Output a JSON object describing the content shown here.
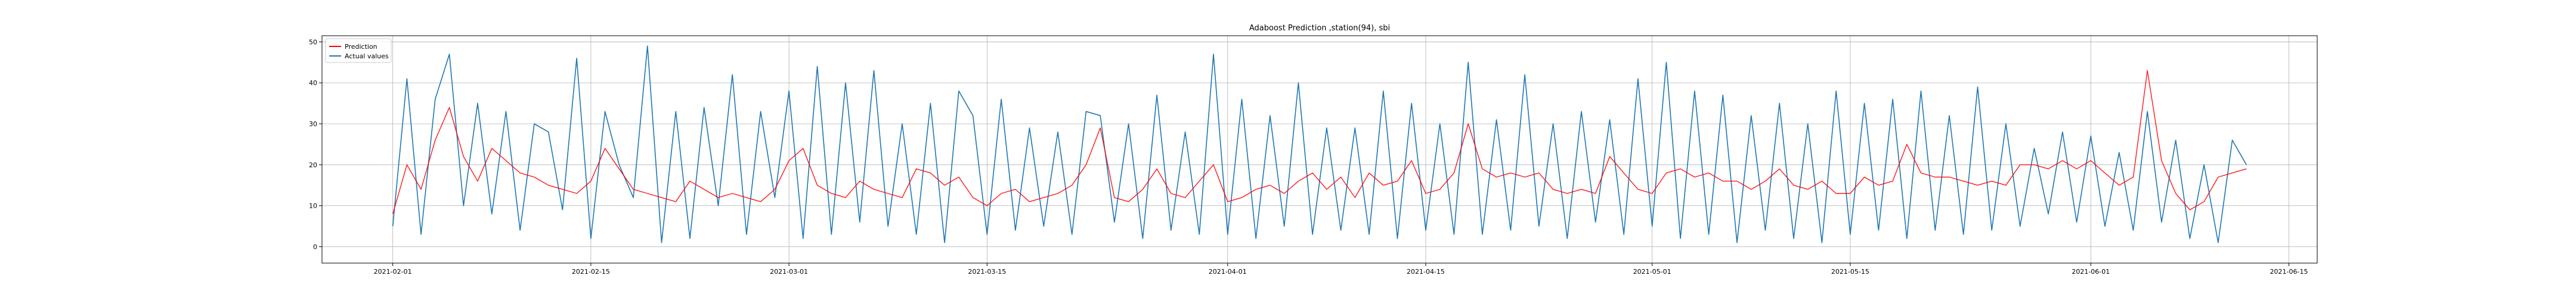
{
  "chart_data": {
    "type": "line",
    "title": "Adaboost Prediction ,station(94), sbi",
    "xlabel": "",
    "ylabel": "",
    "x_range": [
      "2021-01-27",
      "2021-06-17"
    ],
    "ylim": [
      -4,
      51.5
    ],
    "grid": true,
    "legend_position": "top-left",
    "x_ticks": [
      {
        "date": "2021-02-01",
        "label": "2021-02-01"
      },
      {
        "date": "2021-02-15",
        "label": "2021-02-15"
      },
      {
        "date": "2021-03-01",
        "label": "2021-03-01"
      },
      {
        "date": "2021-03-15",
        "label": "2021-03-15"
      },
      {
        "date": "2021-04-01",
        "label": "2021-04-01"
      },
      {
        "date": "2021-04-15",
        "label": "2021-04-15"
      },
      {
        "date": "2021-05-01",
        "label": "2021-05-01"
      },
      {
        "date": "2021-05-15",
        "label": "2021-05-15"
      },
      {
        "date": "2021-06-01",
        "label": "2021-06-01"
      },
      {
        "date": "2021-06-15",
        "label": "2021-06-15"
      }
    ],
    "y_ticks": [
      0,
      10,
      20,
      30,
      40,
      50
    ],
    "series": [
      {
        "name": "Prediction",
        "color": "#ff0000",
        "x": [
          "2021-02-01",
          "2021-02-02",
          "2021-02-03",
          "2021-02-04",
          "2021-02-05",
          "2021-02-06",
          "2021-02-07",
          "2021-02-08",
          "2021-02-09",
          "2021-02-10",
          "2021-02-11",
          "2021-02-12",
          "2021-02-13",
          "2021-02-14",
          "2021-02-15",
          "2021-02-16",
          "2021-02-17",
          "2021-02-18",
          "2021-02-19",
          "2021-02-20",
          "2021-02-21",
          "2021-02-22",
          "2021-02-23",
          "2021-02-24",
          "2021-02-25",
          "2021-02-26",
          "2021-02-27",
          "2021-02-28",
          "2021-03-01",
          "2021-03-02",
          "2021-03-03",
          "2021-03-04",
          "2021-03-05",
          "2021-03-06",
          "2021-03-07",
          "2021-03-08",
          "2021-03-09",
          "2021-03-10",
          "2021-03-11",
          "2021-03-12",
          "2021-03-13",
          "2021-03-14",
          "2021-03-15",
          "2021-03-16",
          "2021-03-17",
          "2021-03-18",
          "2021-03-19",
          "2021-03-20",
          "2021-03-21",
          "2021-03-22",
          "2021-03-23",
          "2021-03-24",
          "2021-03-25",
          "2021-03-26",
          "2021-03-27",
          "2021-03-28",
          "2021-03-29",
          "2021-03-30",
          "2021-03-31",
          "2021-04-01",
          "2021-04-02",
          "2021-04-03",
          "2021-04-04",
          "2021-04-05",
          "2021-04-06",
          "2021-04-07",
          "2021-04-08",
          "2021-04-09",
          "2021-04-10",
          "2021-04-11",
          "2021-04-12",
          "2021-04-13",
          "2021-04-14",
          "2021-04-15",
          "2021-04-16",
          "2021-04-17",
          "2021-04-18",
          "2021-04-19",
          "2021-04-20",
          "2021-04-21",
          "2021-04-22",
          "2021-04-23",
          "2021-04-24",
          "2021-04-25",
          "2021-04-26",
          "2021-04-27",
          "2021-04-28",
          "2021-04-29",
          "2021-04-30",
          "2021-05-01",
          "2021-05-02",
          "2021-05-03",
          "2021-05-04",
          "2021-05-05",
          "2021-05-06",
          "2021-05-07",
          "2021-05-08",
          "2021-05-09",
          "2021-05-10",
          "2021-05-11",
          "2021-05-12",
          "2021-05-13",
          "2021-05-14",
          "2021-05-15",
          "2021-05-16",
          "2021-05-17",
          "2021-05-18",
          "2021-05-19",
          "2021-05-20",
          "2021-05-21",
          "2021-05-22",
          "2021-05-23",
          "2021-05-24",
          "2021-05-25",
          "2021-05-26",
          "2021-05-27",
          "2021-05-28",
          "2021-05-29",
          "2021-05-30",
          "2021-05-31",
          "2021-06-01",
          "2021-06-02",
          "2021-06-03",
          "2021-06-04",
          "2021-06-05",
          "2021-06-06",
          "2021-06-07",
          "2021-06-08",
          "2021-06-09",
          "2021-06-10",
          "2021-06-11",
          "2021-06-12"
        ],
        "values": [
          8,
          20,
          14,
          26,
          34,
          22,
          16,
          24,
          21,
          18,
          17,
          15,
          14,
          13,
          16,
          24,
          19,
          14,
          13,
          12,
          11,
          16,
          14,
          12,
          13,
          12,
          11,
          14,
          21,
          24,
          15,
          13,
          12,
          16,
          14,
          13,
          12,
          19,
          18,
          15,
          17,
          12,
          10,
          13,
          14,
          11,
          12,
          13,
          15,
          20,
          29,
          12,
          11,
          14,
          19,
          13,
          12,
          16,
          20,
          11,
          12,
          14,
          15,
          13,
          16,
          18,
          14,
          17,
          12,
          18,
          15,
          16,
          21,
          13,
          14,
          18,
          30,
          19,
          17,
          18,
          17,
          18,
          14,
          13,
          14,
          13,
          22,
          18,
          14,
          13,
          18,
          19,
          17,
          18,
          16,
          16,
          14,
          16,
          19,
          15,
          14,
          16,
          13,
          13,
          17,
          15,
          16,
          25,
          18,
          17,
          17,
          16,
          15,
          16,
          15,
          20,
          20,
          19,
          21,
          19,
          21,
          18,
          15,
          17,
          43,
          21,
          13,
          9,
          11,
          17,
          18,
          19
        ]
      },
      {
        "name": "Actual values",
        "color": "#1f77b4",
        "x": [
          "2021-02-01",
          "2021-02-02",
          "2021-02-03",
          "2021-02-04",
          "2021-02-05",
          "2021-02-06",
          "2021-02-07",
          "2021-02-08",
          "2021-02-09",
          "2021-02-10",
          "2021-02-11",
          "2021-02-12",
          "2021-02-13",
          "2021-02-14",
          "2021-02-15",
          "2021-02-16",
          "2021-02-17",
          "2021-02-18",
          "2021-02-19",
          "2021-02-20",
          "2021-02-21",
          "2021-02-22",
          "2021-02-23",
          "2021-02-24",
          "2021-02-25",
          "2021-02-26",
          "2021-02-27",
          "2021-02-28",
          "2021-03-01",
          "2021-03-02",
          "2021-03-03",
          "2021-03-04",
          "2021-03-05",
          "2021-03-06",
          "2021-03-07",
          "2021-03-08",
          "2021-03-09",
          "2021-03-10",
          "2021-03-11",
          "2021-03-12",
          "2021-03-13",
          "2021-03-14",
          "2021-03-15",
          "2021-03-16",
          "2021-03-17",
          "2021-03-18",
          "2021-03-19",
          "2021-03-20",
          "2021-03-21",
          "2021-03-22",
          "2021-03-23",
          "2021-03-24",
          "2021-03-25",
          "2021-03-26",
          "2021-03-27",
          "2021-03-28",
          "2021-03-29",
          "2021-03-30",
          "2021-03-31",
          "2021-04-01",
          "2021-04-02",
          "2021-04-03",
          "2021-04-04",
          "2021-04-05",
          "2021-04-06",
          "2021-04-07",
          "2021-04-08",
          "2021-04-09",
          "2021-04-10",
          "2021-04-11",
          "2021-04-12",
          "2021-04-13",
          "2021-04-14",
          "2021-04-15",
          "2021-04-16",
          "2021-04-17",
          "2021-04-18",
          "2021-04-19",
          "2021-04-20",
          "2021-04-21",
          "2021-04-22",
          "2021-04-23",
          "2021-04-24",
          "2021-04-25",
          "2021-04-26",
          "2021-04-27",
          "2021-04-28",
          "2021-04-29",
          "2021-04-30",
          "2021-05-01",
          "2021-05-02",
          "2021-05-03",
          "2021-05-04",
          "2021-05-05",
          "2021-05-06",
          "2021-05-07",
          "2021-05-08",
          "2021-05-09",
          "2021-05-10",
          "2021-05-11",
          "2021-05-12",
          "2021-05-13",
          "2021-05-14",
          "2021-05-15",
          "2021-05-16",
          "2021-05-17",
          "2021-05-18",
          "2021-05-19",
          "2021-05-20",
          "2021-05-21",
          "2021-05-22",
          "2021-05-23",
          "2021-05-24",
          "2021-05-25",
          "2021-05-26",
          "2021-05-27",
          "2021-05-28",
          "2021-05-29",
          "2021-05-30",
          "2021-05-31",
          "2021-06-01",
          "2021-06-02",
          "2021-06-03",
          "2021-06-04",
          "2021-06-05",
          "2021-06-06",
          "2021-06-07",
          "2021-06-08",
          "2021-06-09",
          "2021-06-10",
          "2021-06-11",
          "2021-06-12"
        ],
        "values": [
          5,
          41,
          3,
          36,
          47,
          10,
          35,
          8,
          33,
          4,
          30,
          28,
          9,
          46,
          2,
          33,
          20,
          12,
          49,
          1,
          33,
          2,
          34,
          10,
          42,
          3,
          33,
          12,
          38,
          2,
          44,
          3,
          40,
          6,
          43,
          5,
          30,
          3,
          35,
          1,
          38,
          32,
          3,
          36,
          4,
          29,
          5,
          28,
          3,
          33,
          32,
          6,
          30,
          2,
          37,
          4,
          28,
          3,
          47,
          3,
          36,
          2,
          32,
          5,
          40,
          3,
          29,
          4,
          29,
          3,
          38,
          2,
          35,
          4,
          30,
          3,
          45,
          3,
          31,
          4,
          42,
          5,
          30,
          2,
          33,
          6,
          31,
          3,
          41,
          5,
          45,
          2,
          38,
          3,
          37,
          1,
          32,
          4,
          35,
          2,
          30,
          1,
          38,
          3,
          35,
          4,
          36,
          2,
          38,
          4,
          32,
          3,
          39,
          4,
          30,
          5,
          24,
          8,
          28,
          6,
          27,
          5,
          23,
          4,
          33,
          6,
          26,
          2,
          20,
          1,
          26,
          20
        ]
      }
    ]
  }
}
